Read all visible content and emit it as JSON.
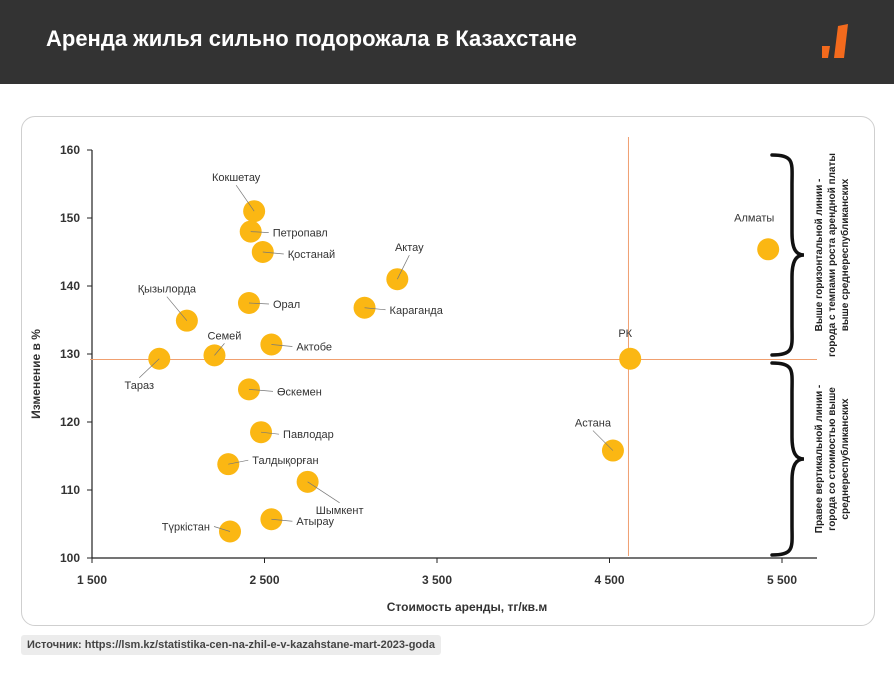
{
  "header": {
    "title": "Аренда жилья сильно подорожала в Казахстане",
    "logo_icon": "orange-bars-logo-icon",
    "background": "#333333",
    "accent": "#f36a1d"
  },
  "source": "Источник: https://lsm.kz/statistika-cen-na-zhil-e-v-kazahstane-mart-2023-goda",
  "chart_data": {
    "type": "scatter",
    "xlabel": "Стоимость аренды, тг/кв.м",
    "ylabel": "Изменение в %",
    "xlim": [
      1500,
      5500
    ],
    "ylim": [
      100,
      160
    ],
    "x_ticks": [
      1500,
      2500,
      3500,
      4500,
      5500
    ],
    "x_tick_labels": [
      "1 500",
      "2 500",
      "3 500",
      "4 500",
      "5 500"
    ],
    "y_ticks": [
      100,
      110,
      120,
      130,
      140,
      150,
      160
    ],
    "y_tick_labels": [
      "100",
      "110",
      "120",
      "130",
      "140",
      "150",
      "160"
    ],
    "grid": false,
    "point_color": "#fbb713",
    "reference_line_color": "#f0a070",
    "reference": {
      "x": 4610,
      "y": 129.2
    },
    "points": [
      {
        "label": "Алматы",
        "x": 5420,
        "y": 145.4
      },
      {
        "label": "Кокшетау",
        "x": 2440,
        "y": 151.0
      },
      {
        "label": "Петропавл",
        "x": 2420,
        "y": 148.0
      },
      {
        "label": "Қостанай",
        "x": 2490,
        "y": 145.0
      },
      {
        "label": "Актау",
        "x": 3270,
        "y": 141.0
      },
      {
        "label": "Орал",
        "x": 2410,
        "y": 137.5
      },
      {
        "label": "Караганда",
        "x": 3080,
        "y": 136.8
      },
      {
        "label": "Қызылорда",
        "x": 2050,
        "y": 134.9
      },
      {
        "label": "Актобе",
        "x": 2540,
        "y": 131.4
      },
      {
        "label": "Семей",
        "x": 2210,
        "y": 129.8
      },
      {
        "label": "Тараз",
        "x": 1890,
        "y": 129.3
      },
      {
        "label": "РК",
        "x": 4620,
        "y": 129.3
      },
      {
        "label": "Өскемен",
        "x": 2410,
        "y": 124.8
      },
      {
        "label": "Павлодар",
        "x": 2480,
        "y": 118.5
      },
      {
        "label": "Астана",
        "x": 4520,
        "y": 115.8
      },
      {
        "label": "Талдықорған",
        "x": 2290,
        "y": 113.8
      },
      {
        "label": "Шымкент",
        "x": 2750,
        "y": 111.2
      },
      {
        "label": "Атырау",
        "x": 2540,
        "y": 105.7
      },
      {
        "label": "Түркістан",
        "x": 2300,
        "y": 103.9
      }
    ],
    "annotations": [
      {
        "text_lines": [
          "Выше горизонтальной линии -",
          "города с темпами роста арендной платы",
          "выше среднереспубликанских"
        ],
        "y_range": [
          129.2,
          160
        ]
      },
      {
        "text_lines": [
          "Правее вертикальной линии -",
          "города со стоимостью выше",
          "среднереспубликанских"
        ],
        "y_range": [
          100,
          129.2
        ]
      }
    ]
  }
}
